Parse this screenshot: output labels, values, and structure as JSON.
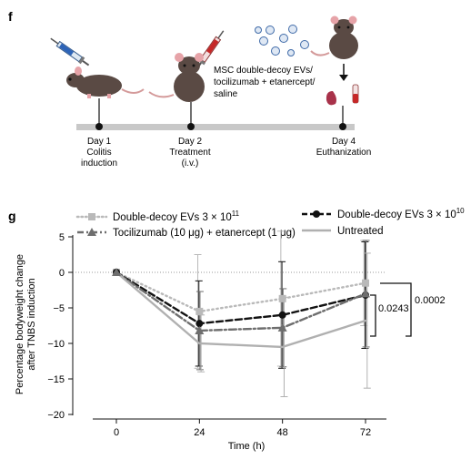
{
  "panel_f": {
    "label": "f",
    "timeline": [
      {
        "title": "Day 1",
        "sub1": "Colitis",
        "sub2": "induction"
      },
      {
        "title": "Day 2",
        "sub1": "Treatment",
        "sub2": "(i.v.)"
      },
      {
        "title": "Day 4",
        "sub1": "Euthanization",
        "sub2": ""
      }
    ],
    "treatment_text": [
      "MSC double-decoy EVs/",
      "tocilizumab + etanercept/",
      "saline"
    ]
  },
  "panel_g": {
    "label": "g",
    "significance": [
      {
        "text": "0.0243"
      },
      {
        "text": "0.0002"
      }
    ]
  },
  "chart_data": {
    "type": "line",
    "xlabel": "Time (h)",
    "ylabel_lines": [
      "Percentage bodyweight change",
      "after TNBS induction"
    ],
    "x": [
      0,
      24,
      48,
      72
    ],
    "x_ticks": [
      "0",
      "24",
      "48",
      "72"
    ],
    "y_ticks": [
      "5",
      "0",
      "−5",
      "−10",
      "−15",
      "−20"
    ],
    "ylim": [
      -20,
      5
    ],
    "reference_line_y": 0,
    "legend_placement": "top",
    "series": [
      {
        "name_main": "Double-decoy EVs 3 × 10",
        "name_sup": "11",
        "values": [
          0,
          -5.5,
          -3.7,
          -1.5
        ],
        "err": [
          0,
          8.0,
          9.5,
          6.0
        ],
        "color": "#b9b9b9",
        "style": "dotted",
        "marker": "square"
      },
      {
        "name_main": "Double-decoy EVs 3 × 10",
        "name_sup": "10",
        "values": [
          0,
          -7.2,
          -6.0,
          -3.2
        ],
        "err": [
          0,
          6.0,
          7.5,
          7.5
        ],
        "color": "#111111",
        "style": "dashed",
        "marker": "circle"
      },
      {
        "name_main": "Tocilizumab (10 μg) + etanercept (1 μg)",
        "name_sup": "",
        "values": [
          0,
          -8.2,
          -7.8,
          -3.0
        ],
        "err": [
          0,
          5.5,
          5.5,
          7.5
        ],
        "color": "#6e6e6e",
        "style": "dashdot",
        "marker": "triangle"
      },
      {
        "name_main": "Untreated",
        "name_sup": "",
        "values": [
          0,
          -10.0,
          -10.5,
          -6.8
        ],
        "err": [
          0,
          4.0,
          7.0,
          9.5
        ],
        "color": "#b0b0b0",
        "style": "solid",
        "marker": "none"
      }
    ]
  }
}
